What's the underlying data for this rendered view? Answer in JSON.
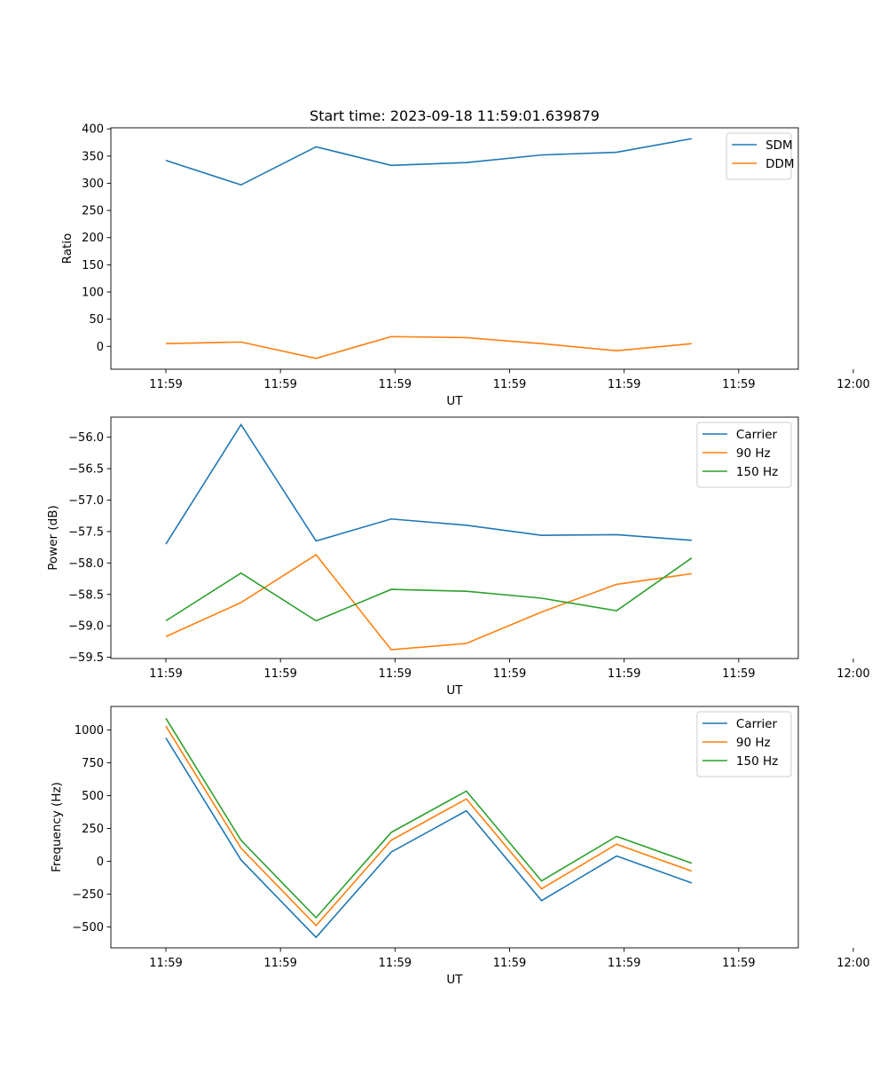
{
  "figure": {
    "title": "Start time: 2023-09-18 11:59:01.639879",
    "colors": {
      "blue": "#1f77b4",
      "orange": "#ff7f0e",
      "green": "#2ca02c"
    }
  },
  "chart_data": [
    {
      "type": "line",
      "title": "Start time: 2023-09-18 11:59:01.639879",
      "xlabel": "UT",
      "ylabel": "Ratio",
      "xlim": [
        -0.48,
        5.52
      ],
      "ylim": [
        -42,
        402
      ],
      "xticks": [
        {
          "value": 0,
          "label": "11:59"
        },
        {
          "value": 1,
          "label": "11:59"
        },
        {
          "value": 2,
          "label": "11:59"
        },
        {
          "value": 3,
          "label": "11:59"
        },
        {
          "value": 4,
          "label": "11:59"
        },
        {
          "value": 5,
          "label": "11:59"
        },
        {
          "value": 6,
          "label": "12:00"
        }
      ],
      "yticks": [
        0,
        50,
        100,
        150,
        200,
        250,
        300,
        350,
        400
      ],
      "ytick_labels": [
        "0",
        "50",
        "100",
        "150",
        "200",
        "250",
        "300",
        "350",
        "400"
      ],
      "x": [
        0,
        0.656,
        1.311,
        1.967,
        2.623,
        3.279,
        3.934,
        4.59
      ],
      "series": [
        {
          "name": "SDM",
          "color": "#1f77b4",
          "values": [
            342,
            297,
            367,
            333,
            338,
            352,
            357,
            382
          ]
        },
        {
          "name": "DDM",
          "color": "#ff7f0e",
          "values": [
            5,
            8,
            -22,
            18,
            16,
            5,
            -8,
            5
          ]
        }
      ],
      "legend": "upper right",
      "grid": false
    },
    {
      "type": "line",
      "xlabel": "UT",
      "ylabel": "Power (dB)",
      "xlim": [
        -0.48,
        5.52
      ],
      "ylim": [
        -59.52,
        -55.68
      ],
      "xticks": [
        {
          "value": 0,
          "label": "11:59"
        },
        {
          "value": 1,
          "label": "11:59"
        },
        {
          "value": 2,
          "label": "11:59"
        },
        {
          "value": 3,
          "label": "11:59"
        },
        {
          "value": 4,
          "label": "11:59"
        },
        {
          "value": 5,
          "label": "11:59"
        },
        {
          "value": 6,
          "label": "12:00"
        }
      ],
      "yticks": [
        -59.5,
        -59.0,
        -58.5,
        -58.0,
        -57.5,
        -57.0,
        -56.5,
        -56.0
      ],
      "ytick_labels": [
        "−59.5",
        "−59.0",
        "−58.5",
        "−58.0",
        "−57.5",
        "−57.0",
        "−56.5",
        "−56.0"
      ],
      "x": [
        0,
        0.656,
        1.311,
        1.967,
        2.623,
        3.279,
        3.934,
        4.59
      ],
      "series": [
        {
          "name": "Carrier",
          "color": "#1f77b4",
          "values": [
            -57.7,
            -55.8,
            -57.65,
            -57.3,
            -57.4,
            -57.56,
            -57.55,
            -57.64
          ]
        },
        {
          "name": "90 Hz",
          "color": "#ff7f0e",
          "values": [
            -59.17,
            -58.63,
            -57.87,
            -59.38,
            -59.28,
            -58.78,
            -58.34,
            -58.17
          ]
        },
        {
          "name": "150 Hz",
          "color": "#2ca02c",
          "values": [
            -58.92,
            -58.16,
            -58.92,
            -58.42,
            -58.45,
            -58.56,
            -58.76,
            -57.92
          ]
        }
      ],
      "legend": "upper right",
      "grid": false
    },
    {
      "type": "line",
      "xlabel": "UT",
      "ylabel": "Frequency (Hz)",
      "xlim": [
        -0.48,
        5.52
      ],
      "ylim": [
        -660,
        1180
      ],
      "xticks": [
        {
          "value": 0,
          "label": "11:59"
        },
        {
          "value": 1,
          "label": "11:59"
        },
        {
          "value": 2,
          "label": "11:59"
        },
        {
          "value": 3,
          "label": "11:59"
        },
        {
          "value": 4,
          "label": "11:59"
        },
        {
          "value": 5,
          "label": "11:59"
        },
        {
          "value": 6,
          "label": "12:00"
        }
      ],
      "yticks": [
        -500,
        -250,
        0,
        250,
        500,
        750,
        1000
      ],
      "ytick_labels": [
        "−500",
        "−250",
        "0",
        "250",
        "500",
        "750",
        "1000"
      ],
      "x": [
        0,
        0.656,
        1.311,
        1.967,
        2.623,
        3.279,
        3.934,
        4.59
      ],
      "series": [
        {
          "name": "Carrier",
          "color": "#1f77b4",
          "values": [
            940,
            10,
            -580,
            70,
            385,
            -300,
            40,
            -165
          ]
        },
        {
          "name": "90 Hz",
          "color": "#ff7f0e",
          "values": [
            1030,
            100,
            -490,
            160,
            475,
            -210,
            130,
            -75
          ]
        },
        {
          "name": "150 Hz",
          "color": "#2ca02c",
          "values": [
            1090,
            160,
            -430,
            220,
            535,
            -150,
            190,
            -15
          ]
        }
      ],
      "legend": "upper right",
      "grid": false
    }
  ]
}
